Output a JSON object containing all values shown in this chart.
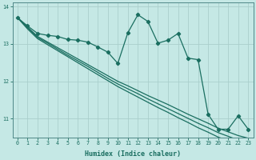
{
  "xlabel": "Humidex (Indice chaleur)",
  "ylabel": "",
  "bg_color": "#c5e8e5",
  "grid_color": "#aacfcc",
  "line_color": "#1a6e60",
  "xlim": [
    -0.5,
    23.5
  ],
  "ylim": [
    10.5,
    14.1
  ],
  "yticks": [
    11,
    12,
    13,
    14
  ],
  "xticks": [
    0,
    1,
    2,
    3,
    4,
    5,
    6,
    7,
    8,
    9,
    10,
    11,
    12,
    13,
    14,
    15,
    16,
    17,
    18,
    19,
    20,
    21,
    22,
    23
  ],
  "line_jagged": [
    13.7,
    13.48,
    13.28,
    13.23,
    13.2,
    13.12,
    13.1,
    13.05,
    12.92,
    12.78,
    12.48,
    13.3,
    13.78,
    13.6,
    13.02,
    13.1,
    13.28,
    12.62,
    12.58,
    11.12,
    10.72,
    10.72,
    11.08,
    10.72
  ],
  "line_straight1": [
    13.7,
    13.45,
    13.2,
    13.05,
    12.9,
    12.75,
    12.6,
    12.45,
    12.3,
    12.15,
    12.0,
    11.88,
    11.75,
    11.62,
    11.5,
    11.38,
    11.25,
    11.12,
    11.0,
    10.88,
    10.75,
    10.65,
    10.55,
    10.48
  ],
  "line_straight2": [
    13.7,
    13.43,
    13.17,
    13.02,
    12.86,
    12.7,
    12.55,
    12.4,
    12.24,
    12.08,
    11.93,
    11.8,
    11.67,
    11.53,
    11.4,
    11.27,
    11.14,
    11.01,
    10.88,
    10.76,
    10.63,
    10.53,
    10.43,
    10.36
  ],
  "line_straight3": [
    13.7,
    13.4,
    13.14,
    12.98,
    12.82,
    12.66,
    12.5,
    12.34,
    12.18,
    12.02,
    11.86,
    11.72,
    11.58,
    11.44,
    11.3,
    11.17,
    11.03,
    10.9,
    10.76,
    10.64,
    10.51,
    10.41,
    10.31,
    10.24
  ]
}
